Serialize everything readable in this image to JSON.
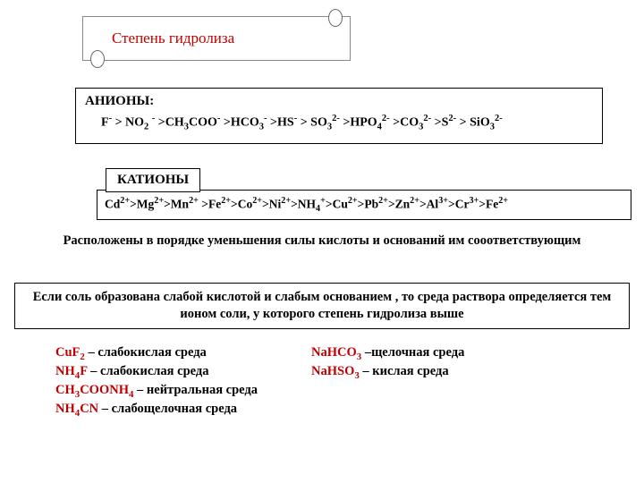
{
  "colors": {
    "accent_red": "#c00000",
    "text_black": "#000000",
    "border": "#000000",
    "background": "#ffffff"
  },
  "fonts": {
    "family": "Times New Roman",
    "title_size_pt": 17,
    "body_size_pt": 14.5,
    "series_size_pt": 14,
    "weight": "bold"
  },
  "title": "Степень гидролиза",
  "anions": {
    "header": "АНИОНЫ:",
    "series_html": "F<span class='sup'>-</span> > NO<span class='sub'>2</span> <span class='sup'>-</span> >CH<span class='sub'>3</span>COO<span class='sup'>-</span> >HCO<span class='sub'>3</span><span class='sup'>-</span> >HS<span class='sup'>-</span> > SO<span class='sub'>3</span><span class='sup'>2-</span> >HPO<span class='sub'>4</span><span class='sup'>2-</span> >CO<span class='sub'>3</span><span class='sup'>2-</span> >S<span class='sup'>2-</span> > SiO<span class='sub'>3</span><span class='sup'>2-</span>"
  },
  "cations": {
    "header": "КАТИОНЫ",
    "series_html": "Cd<span class='sup'>2+</span>>Mg<span class='sup'>2+</span>>Mn<span class='sup'>2+</span> >Fe<span class='sup'>2+</span>>Co<span class='sup'>2+</span>>Ni<span class='sup'>2+</span>>NH<span class='sub'>4</span><span class='sup'>+</span>>Cu<span class='sup'>2+</span>>Pb<span class='sup'>2+</span>>Zn<span class='sup'>2+</span>>Al<span class='sup'>3+</span>>Cr<span class='sup'>3+</span>>Fe<span class='sup'>2+</span>"
  },
  "paragraph1": "Расположены в порядке уменьшения силы кислоты и оснований им сооответствующим",
  "paragraph2": "Если соль образована слабой кислотой и слабым основанием , то среда раствора определяется тем ионом соли, у которого степень гидролиза выше",
  "examples": {
    "left": [
      {
        "formula_html": "CuF<span class='sub'>2</span>",
        "sep": " – ",
        "text": "слабокислая среда"
      },
      {
        "formula_html": "NH<span class='sub'>4</span>F",
        "sep": " – ",
        "text": "слабокислая среда"
      },
      {
        "formula_html": "CH<span class='sub'>3</span>COONH<span class='sub'>4</span>",
        "sep": " – ",
        "text": "нейтральная среда"
      },
      {
        "formula_html": "NH<span class='sub'>4</span>CN",
        "sep": " – ",
        "text": "слабощелочная среда"
      }
    ],
    "right": [
      {
        "formula_html": "NaHCO<span class='sub'>3</span>",
        "sep": " –",
        "text": "щелочная среда"
      },
      {
        "formula_html": "NaHSO<span class='sub'>3</span>",
        "sep": " – ",
        "text": "кислая среда"
      }
    ]
  }
}
